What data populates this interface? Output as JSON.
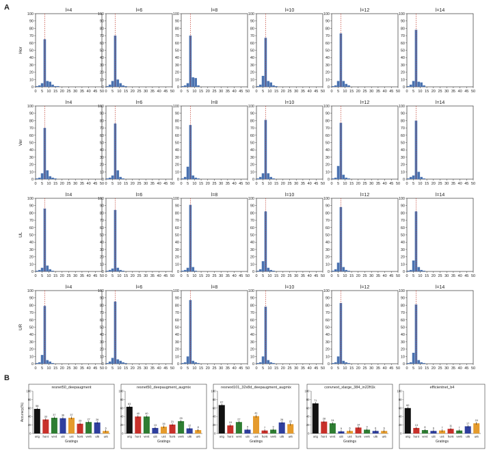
{
  "panels": {
    "a": "A",
    "b": "B"
  },
  "hist_xticks": [
    0,
    5,
    10,
    15,
    20,
    25,
    30,
    35,
    40,
    45,
    50
  ],
  "hist_yticks": [
    0,
    10,
    20,
    30,
    40,
    50,
    60,
    70,
    80,
    90,
    100
  ],
  "chart_data": [
    {
      "type": "bar",
      "panel": "A",
      "description": "Grid of histograms; rows = Hor, Ver, UL, UR; columns = l=4..14. Bars are 2-unit bins from 0 to 50; dashed red line at x≈7.",
      "row_labels": [
        "Hor",
        "Ver",
        "UL",
        "UR"
      ],
      "col_titles": [
        "l=4",
        "l=6",
        "l=8",
        "l=10",
        "l=12",
        "l=14"
      ],
      "xlim": [
        0,
        50
      ],
      "ylim": [
        0,
        100
      ],
      "bin_width": 2,
      "bin_starts": [
        0,
        2,
        4,
        6,
        8,
        10,
        12,
        14,
        16,
        18,
        20,
        22,
        24,
        26,
        28,
        30,
        32,
        34,
        36,
        38,
        40,
        42,
        44,
        46,
        48
      ],
      "guide_x": 7,
      "grid": [
        [
          [
            1,
            2,
            5,
            65,
            8,
            7,
            3,
            1,
            1,
            0,
            0,
            0,
            0,
            0,
            0,
            0,
            0,
            0,
            0,
            0,
            0,
            0,
            0,
            0,
            0
          ],
          [
            1,
            3,
            8,
            70,
            10,
            5,
            2,
            1,
            0,
            0,
            0,
            0,
            0,
            0,
            0,
            0,
            0,
            0,
            0,
            0,
            0,
            0,
            0,
            0,
            0
          ],
          [
            1,
            2,
            5,
            70,
            13,
            12,
            2,
            0,
            0,
            0,
            0,
            0,
            0,
            0,
            0,
            0,
            0,
            0,
            0,
            0,
            0,
            0,
            0,
            0,
            0
          ],
          [
            1,
            3,
            15,
            67,
            8,
            6,
            2,
            1,
            0,
            0,
            0,
            0,
            0,
            0,
            0,
            0,
            0,
            0,
            0,
            0,
            0,
            0,
            0,
            0,
            0
          ],
          [
            1,
            2,
            8,
            73,
            8,
            4,
            2,
            0,
            0,
            0,
            0,
            0,
            0,
            0,
            0,
            0,
            0,
            0,
            0,
            0,
            0,
            0,
            0,
            0,
            0
          ],
          [
            1,
            3,
            8,
            78,
            7,
            6,
            2,
            0,
            0,
            0,
            0,
            0,
            0,
            0,
            0,
            0,
            0,
            0,
            0,
            0,
            0,
            0,
            0,
            0,
            0
          ]
        ],
        [
          [
            1,
            2,
            8,
            70,
            12,
            4,
            2,
            1,
            0,
            0,
            0,
            0,
            0,
            0,
            0,
            0,
            0,
            0,
            0,
            0,
            0,
            0,
            0,
            0,
            0
          ],
          [
            1,
            2,
            5,
            76,
            12,
            3,
            1,
            0,
            0,
            0,
            0,
            0,
            0,
            0,
            0,
            0,
            0,
            0,
            0,
            0,
            0,
            0,
            0,
            0,
            0
          ],
          [
            1,
            3,
            17,
            74,
            5,
            2,
            1,
            0,
            0,
            0,
            0,
            0,
            0,
            0,
            0,
            0,
            0,
            0,
            0,
            0,
            0,
            0,
            0,
            0,
            0
          ],
          [
            1,
            3,
            8,
            81,
            8,
            3,
            1,
            0,
            0,
            0,
            0,
            0,
            0,
            0,
            0,
            0,
            0,
            0,
            0,
            0,
            0,
            0,
            0,
            0,
            0
          ],
          [
            1,
            2,
            18,
            77,
            6,
            2,
            1,
            0,
            0,
            0,
            0,
            0,
            0,
            0,
            0,
            0,
            0,
            0,
            0,
            0,
            0,
            0,
            0,
            0,
            0
          ],
          [
            1,
            3,
            5,
            80,
            10,
            3,
            1,
            0,
            0,
            0,
            0,
            0,
            0,
            0,
            0,
            0,
            0,
            0,
            0,
            0,
            0,
            0,
            0,
            0,
            0
          ]
        ],
        [
          [
            1,
            2,
            5,
            86,
            8,
            3,
            1,
            0,
            0,
            0,
            0,
            0,
            0,
            0,
            0,
            0,
            0,
            0,
            0,
            0,
            0,
            0,
            0,
            0,
            0
          ],
          [
            1,
            2,
            4,
            84,
            5,
            2,
            1,
            0,
            0,
            0,
            0,
            0,
            0,
            0,
            0,
            0,
            0,
            0,
            0,
            0,
            0,
            0,
            0,
            0,
            0
          ],
          [
            1,
            2,
            5,
            91,
            6,
            1,
            0,
            0,
            0,
            0,
            0,
            0,
            0,
            0,
            0,
            0,
            0,
            0,
            0,
            0,
            0,
            0,
            0,
            0,
            0
          ],
          [
            1,
            3,
            14,
            82,
            5,
            2,
            1,
            0,
            0,
            0,
            0,
            0,
            0,
            0,
            0,
            0,
            0,
            0,
            0,
            0,
            0,
            0,
            0,
            0,
            0
          ],
          [
            1,
            3,
            12,
            88,
            6,
            2,
            1,
            0,
            0,
            0,
            0,
            0,
            0,
            0,
            0,
            0,
            0,
            0,
            0,
            0,
            0,
            0,
            0,
            0,
            0
          ],
          [
            1,
            2,
            15,
            82,
            6,
            2,
            1,
            0,
            0,
            0,
            0,
            0,
            0,
            0,
            0,
            0,
            0,
            0,
            0,
            0,
            0,
            0,
            0,
            0,
            0
          ]
        ],
        [
          [
            1,
            2,
            12,
            79,
            5,
            3,
            1,
            0,
            0,
            0,
            0,
            0,
            0,
            0,
            0,
            0,
            0,
            0,
            0,
            0,
            0,
            0,
            0,
            0,
            0
          ],
          [
            1,
            3,
            8,
            85,
            6,
            4,
            2,
            1,
            0,
            0,
            0,
            0,
            0,
            0,
            0,
            0,
            0,
            0,
            0,
            0,
            0,
            0,
            0,
            0,
            0
          ],
          [
            1,
            2,
            10,
            87,
            4,
            2,
            1,
            0,
            0,
            0,
            0,
            0,
            0,
            0,
            0,
            0,
            0,
            0,
            0,
            0,
            0,
            0,
            0,
            0,
            0
          ],
          [
            1,
            2,
            10,
            78,
            5,
            2,
            1,
            0,
            0,
            0,
            0,
            0,
            0,
            0,
            0,
            0,
            0,
            0,
            0,
            0,
            0,
            0,
            0,
            0,
            0
          ],
          [
            1,
            2,
            10,
            83,
            4,
            2,
            1,
            0,
            0,
            0,
            0,
            0,
            0,
            0,
            0,
            0,
            0,
            0,
            0,
            0,
            0,
            0,
            0,
            0,
            0
          ],
          [
            1,
            2,
            15,
            81,
            5,
            2,
            1,
            0,
            0,
            0,
            0,
            0,
            0,
            0,
            0,
            0,
            0,
            0,
            0,
            0,
            0,
            0,
            0,
            0,
            0
          ]
        ]
      ],
      "bar_color": "#4a72b0",
      "guide_color": "#c0392b"
    },
    {
      "type": "bar",
      "panel": "B",
      "ylabel": "Accuracy(%)",
      "xlabel": "Gratings",
      "ylim": [
        0,
        100
      ],
      "yticks": [
        0,
        20,
        40,
        60,
        80,
        100
      ],
      "categories": [
        "orig",
        "hor4",
        "ver4",
        "ul4",
        "ur4",
        "hor6",
        "ver6",
        "ul6",
        "ur6"
      ],
      "bar_colors": [
        "#111111",
        "#c8302a",
        "#2e7d32",
        "#2f3f9e",
        "#e59b2d",
        "#c8302a",
        "#2e7d32",
        "#2f3f9e",
        "#e59b2d"
      ],
      "subplots": [
        {
          "title": "resnet50_deepaugment",
          "values": [
            58,
            33,
            37,
            36,
            37,
            23,
            27,
            26,
            6
          ]
        },
        {
          "title": "resnet50_deepaugment_augmix",
          "values": [
            63,
            40,
            40,
            13,
            16,
            21,
            29,
            12,
            8
          ]
        },
        {
          "title": "resnext101_32x8d_deepaugment_augmix",
          "values": [
            67,
            19,
            27,
            9,
            41,
            7,
            9,
            26,
            22
          ]
        },
        {
          "title": "convnext_xlarge_384_in22ft1k",
          "values": [
            71,
            28,
            24,
            5,
            6,
            14,
            9,
            6,
            6
          ]
        },
        {
          "title": "efficientnet_b4",
          "values": [
            60,
            13,
            8,
            6,
            7,
            11,
            7,
            17,
            24
          ]
        }
      ]
    }
  ]
}
